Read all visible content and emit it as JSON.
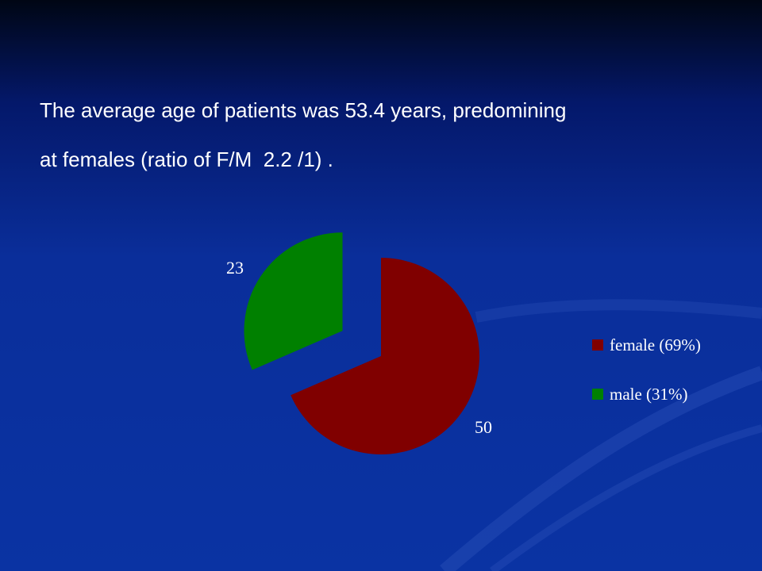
{
  "slide": {
    "headline_line1": "The average age of patients was 53.4 years, predomining",
    "headline_line2": "at females (ratio of F/M  2.2 /1) ."
  },
  "colors": {
    "text": "#ffffff",
    "background": "#0a33a3",
    "swoosh": "#2a4fb8"
  },
  "chart_data": {
    "type": "pie",
    "exploded": true,
    "slices": [
      {
        "label": "female (69%)",
        "value": 50,
        "color": "#800000"
      },
      {
        "label": "male (31%)",
        "value": 23,
        "color": "#008000"
      }
    ],
    "data_labels": [
      "50",
      "23"
    ],
    "legend_position": "right"
  }
}
